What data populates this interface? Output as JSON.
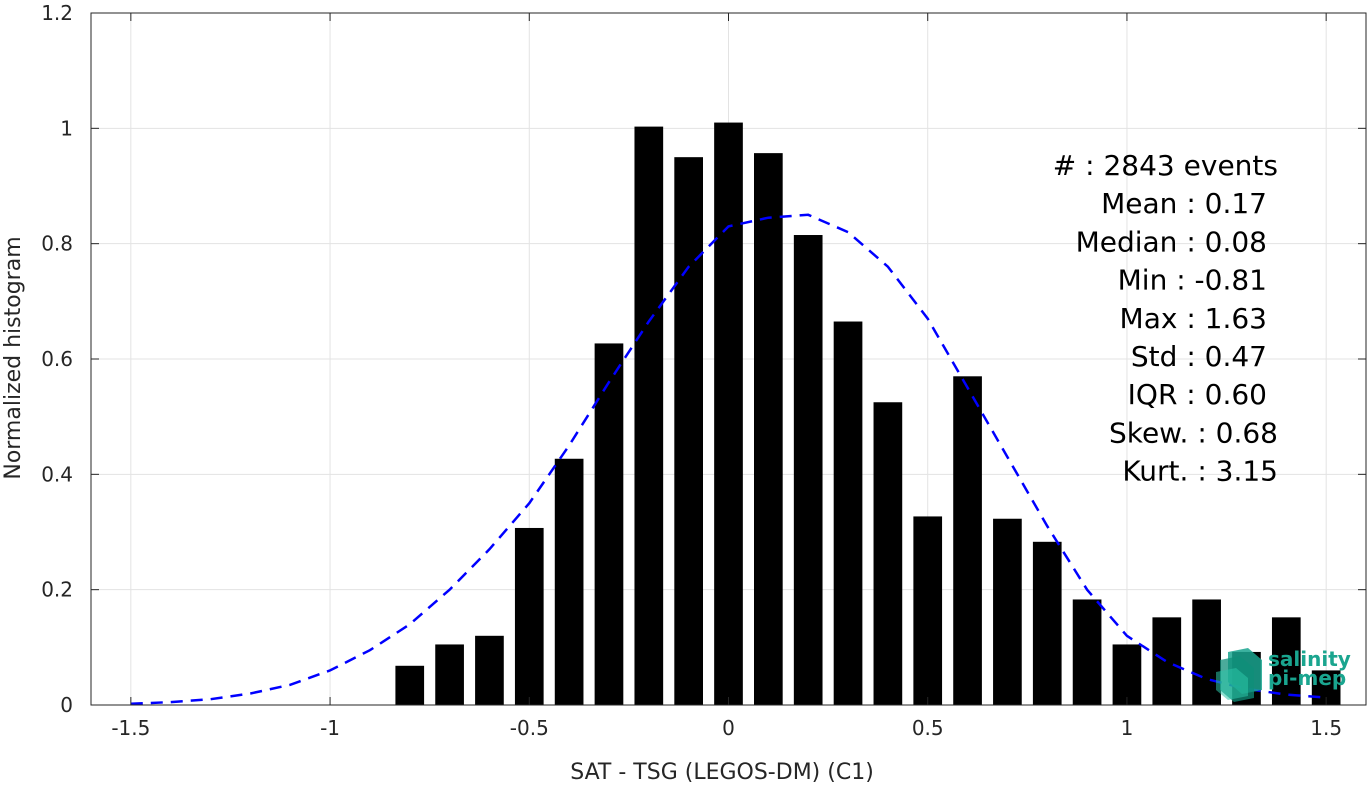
{
  "chart_data": {
    "type": "bar",
    "xlabel": "SAT - TSG (LEGOS-DM) (C1)",
    "ylabel": "Normalized histogram",
    "xlim": [
      -1.6,
      1.6
    ],
    "ylim": [
      0,
      1.2
    ],
    "xticks": [
      -1.5,
      -1,
      -0.5,
      0,
      0.5,
      1,
      1.5
    ],
    "xtick_labels": [
      "-1.5",
      "-1",
      "-0.5",
      "0",
      "0.5",
      "1",
      "1.5"
    ],
    "yticks": [
      0,
      0.2,
      0.4,
      0.6,
      0.8,
      1,
      1.2
    ],
    "ytick_labels": [
      "0",
      "0.2",
      "0.4",
      "0.6",
      "0.8",
      "1",
      "1.2"
    ],
    "grid": true,
    "bar_color": "#000000",
    "bars": {
      "x": [
        -0.8,
        -0.7,
        -0.6,
        -0.5,
        -0.4,
        -0.3,
        -0.2,
        -0.1,
        0.0,
        0.1,
        0.2,
        0.3,
        0.4,
        0.5,
        0.6,
        0.7,
        0.8,
        0.9,
        1.0,
        1.1,
        1.2,
        1.3,
        1.4,
        1.5
      ],
      "values": [
        0.068,
        0.105,
        0.12,
        0.307,
        0.427,
        0.627,
        1.003,
        0.95,
        1.01,
        0.957,
        0.815,
        0.665,
        0.525,
        0.327,
        0.57,
        0.323,
        0.283,
        0.183,
        0.105,
        0.152,
        0.183,
        0.092,
        0.152,
        0.06
      ]
    },
    "fit_curve": {
      "style": "dashed",
      "color": "#0000ff",
      "x": [
        -1.5,
        -1.4,
        -1.3,
        -1.2,
        -1.1,
        -1.0,
        -0.9,
        -0.8,
        -0.7,
        -0.6,
        -0.5,
        -0.4,
        -0.3,
        -0.2,
        -0.1,
        0.0,
        0.1,
        0.2,
        0.3,
        0.4,
        0.5,
        0.6,
        0.7,
        0.8,
        0.9,
        1.0,
        1.1,
        1.2,
        1.3,
        1.4,
        1.5
      ],
      "values": [
        0.002,
        0.005,
        0.01,
        0.02,
        0.035,
        0.06,
        0.095,
        0.14,
        0.2,
        0.27,
        0.35,
        0.45,
        0.56,
        0.665,
        0.76,
        0.83,
        0.845,
        0.85,
        0.82,
        0.76,
        0.67,
        0.55,
        0.43,
        0.31,
        0.2,
        0.12,
        0.075,
        0.045,
        0.028,
        0.018,
        0.013
      ]
    },
    "stats": [
      {
        "label": "#  : 2843 events"
      },
      {
        "label": "Mean : 0.17"
      },
      {
        "label": "Median : 0.08"
      },
      {
        "label": "Min : -0.81"
      },
      {
        "label": "Max : 1.63"
      },
      {
        "label": "Std : 0.47"
      },
      {
        "label": "IQR : 0.60"
      },
      {
        "label": "Skew. : 0.68"
      },
      {
        "label": "Kurt. : 3.15"
      }
    ]
  },
  "logo": {
    "line1": "salinity",
    "line2": "pi-mep",
    "color": "#1aa58f"
  }
}
